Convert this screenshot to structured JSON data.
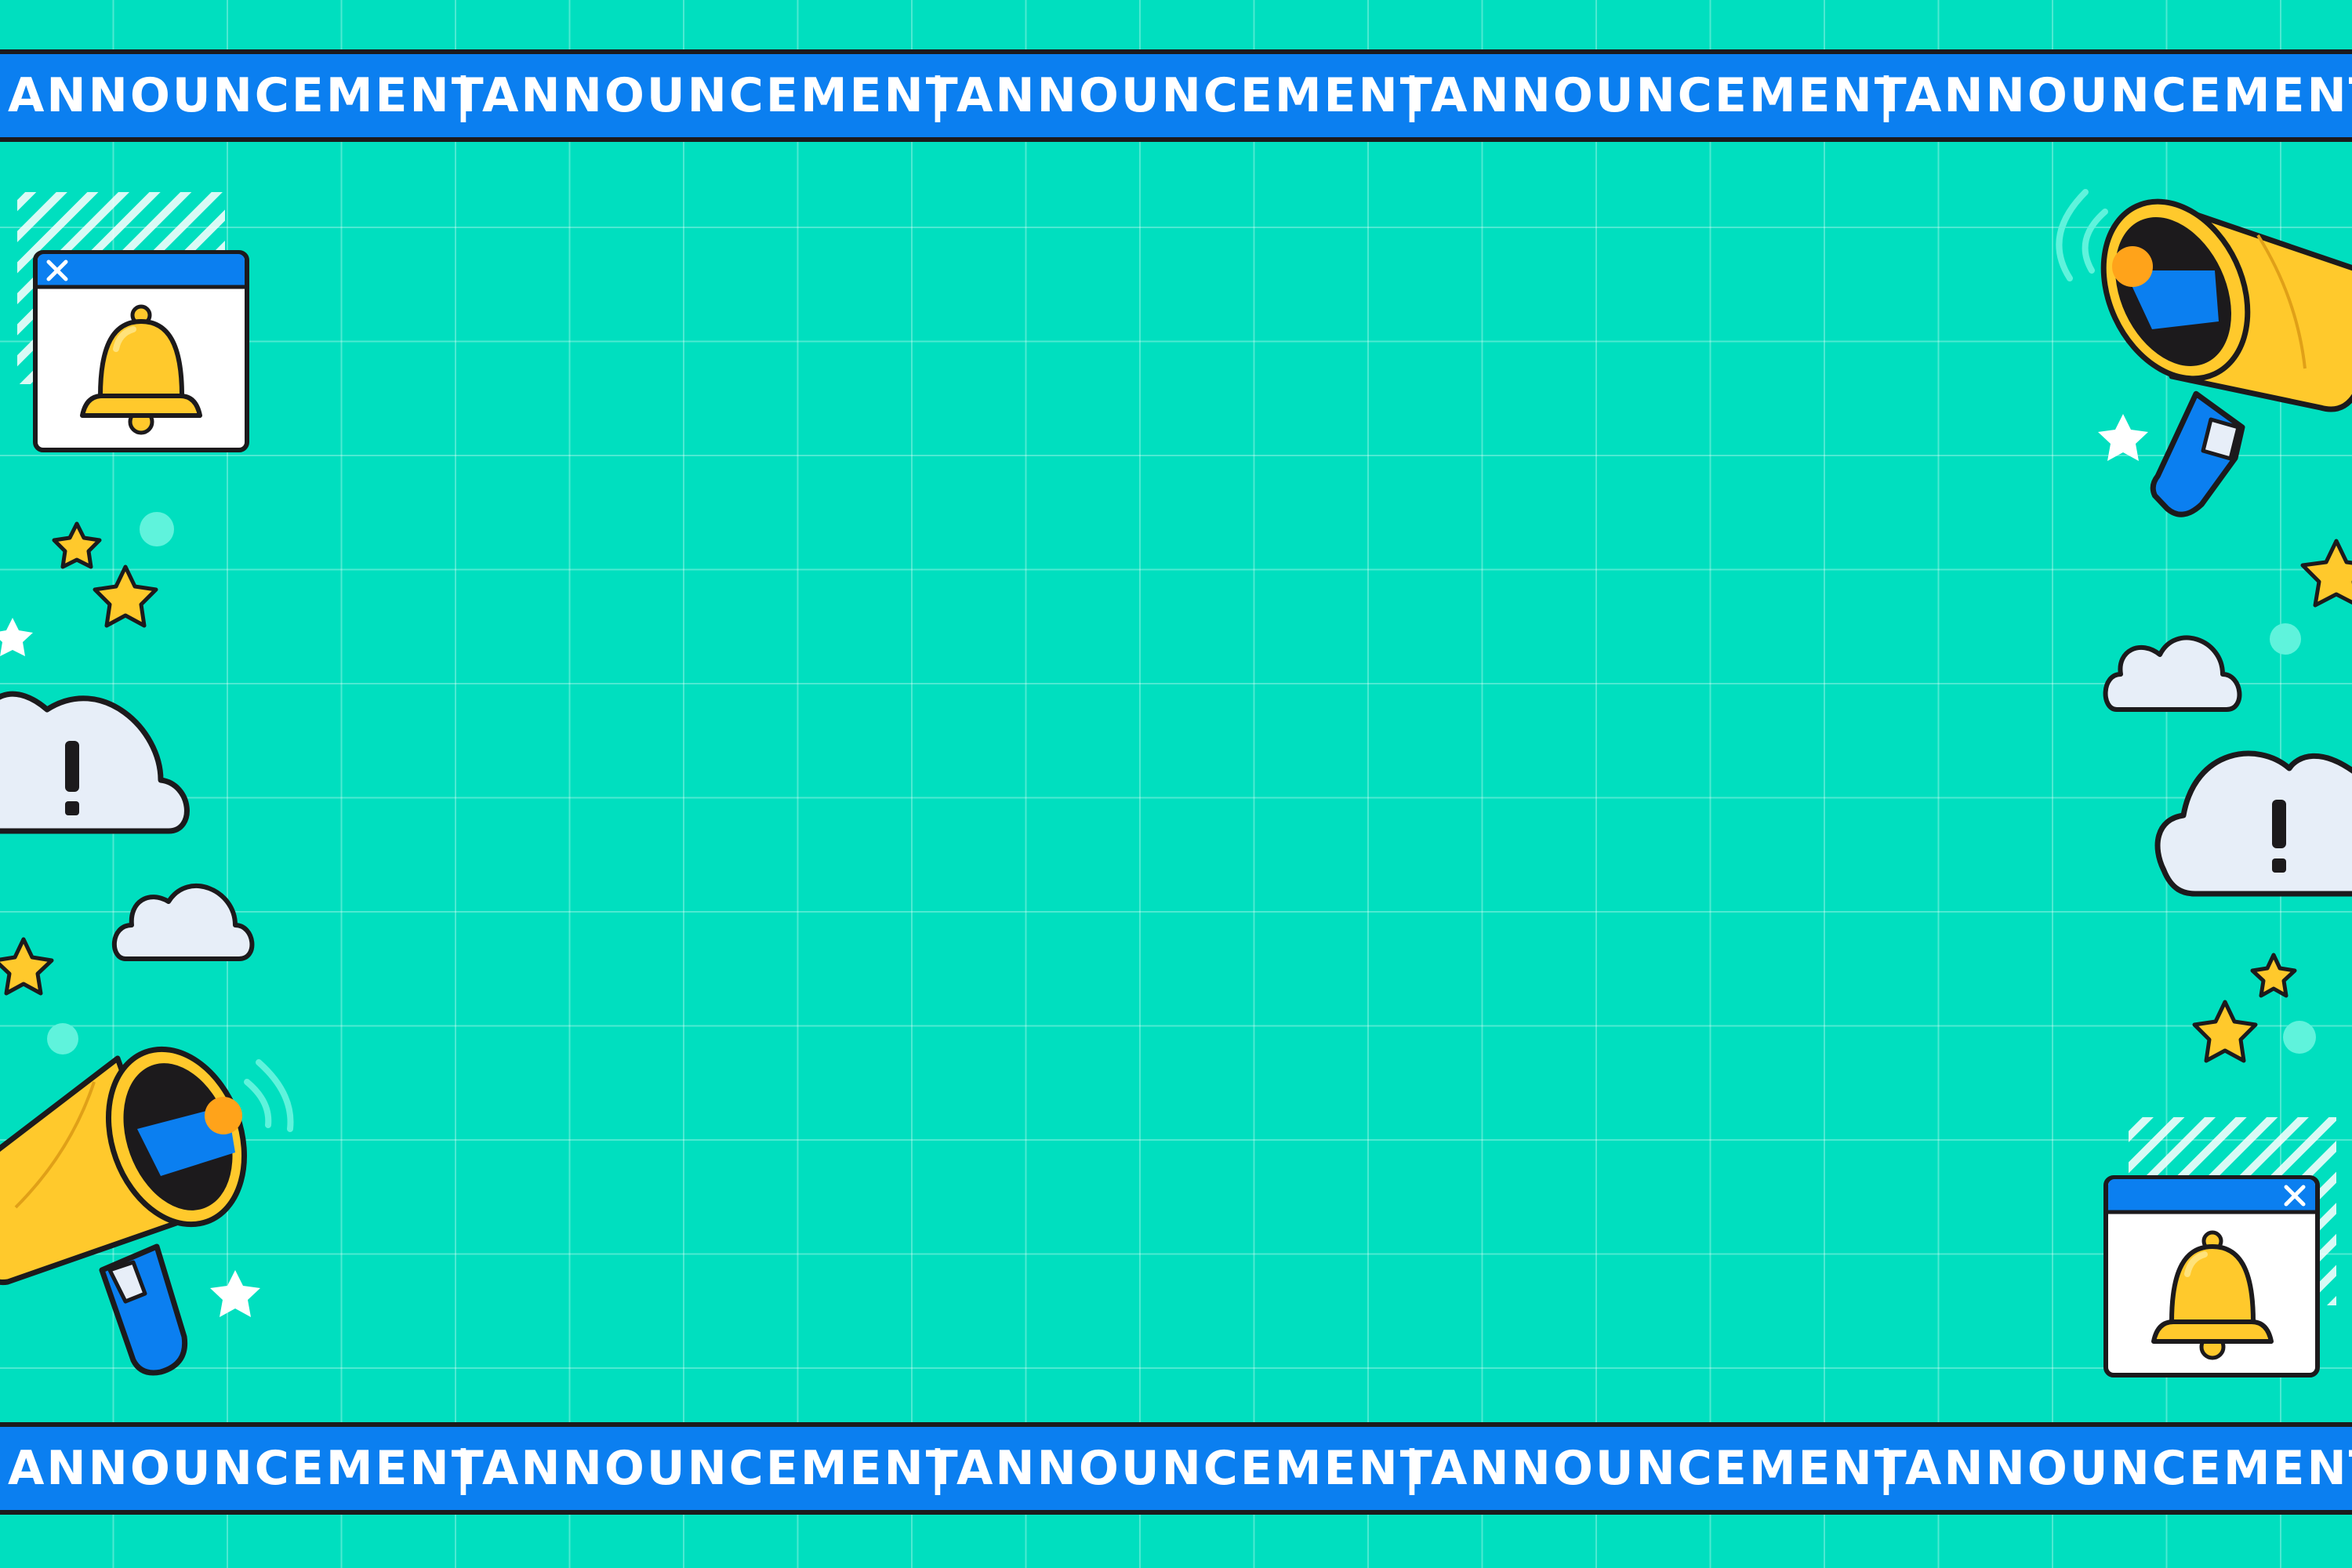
{
  "banners": {
    "top": [
      "ANNOUNCEMENT",
      "ANNOUNCEMENT",
      "ANNOUNCEMENT",
      "ANNOUNCEMENT",
      "ANNOUNCEMENT"
    ],
    "bottom": [
      "ANNOUNCEMENT",
      "ANNOUNCEMENT",
      "ANNOUNCEMENT",
      "ANNOUNCEMENT",
      "ANNOUNCEMENT"
    ],
    "separator": "|"
  },
  "icons": {
    "notification_windows": [
      "bell-icon",
      "close-icon"
    ],
    "megaphones": [
      "megaphone-icon"
    ],
    "clouds": [
      "cloud-icon",
      "alert-cloud-icon"
    ],
    "stars": [
      "star-icon"
    ]
  },
  "colors": {
    "background": "#00dfbf",
    "banner": "#0b7ff0",
    "outline": "#1c1a1c",
    "bell": "#ffc92c",
    "megaphone": "#ffc92c",
    "handle": "#0b7ff0",
    "cloud": "#e7eef8",
    "accent_circle": "#5ff3dc"
  }
}
